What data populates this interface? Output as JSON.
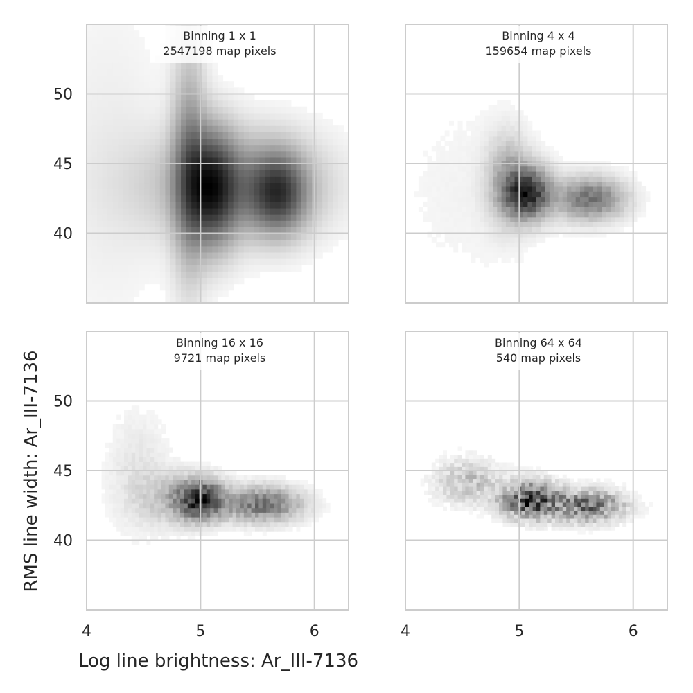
{
  "chart_data": {
    "type": "heatmap",
    "xlabel": "Log line brightness: Ar_III-7136",
    "ylabel": "RMS line width: Ar_III-7136",
    "xlim": [
      4.0,
      6.3
    ],
    "ylim": [
      35.0,
      55.0
    ],
    "xticks": [
      4,
      5,
      6
    ],
    "yticks": [
      40,
      45,
      50
    ],
    "grid": true,
    "colormap": "greys",
    "colors": {
      "grid": "#cccccc",
      "frame": "#cccccc",
      "ink": "#000000",
      "text": "#262626"
    },
    "panels": [
      {
        "title_line1": "Binning 1 x 1",
        "title_line2": "2547198 map pixels",
        "map_pixels": 2547198,
        "show_yticklabels": true,
        "show_xticklabels": false,
        "density": {
          "clusters": [
            {
              "x": 5.1,
              "y": 43.2,
              "sx": 0.15,
              "sy": 2.8,
              "w": 1.0
            },
            {
              "x": 5.68,
              "y": 42.9,
              "sx": 0.17,
              "sy": 1.9,
              "w": 0.9
            },
            {
              "x": 4.9,
              "y": 45.0,
              "sx": 0.1,
              "sy": 5.5,
              "w": 0.5
            },
            {
              "x": 5.3,
              "y": 43.5,
              "sx": 0.5,
              "sy": 2.5,
              "w": 0.5
            },
            {
              "x": 4.2,
              "y": 45.0,
              "sx": 0.35,
              "sy": 8.0,
              "w": 0.06
            }
          ],
          "bins_x": 50,
          "bins_y": 44,
          "noise": 0.0
        }
      },
      {
        "title_line1": "Binning 4 x 4",
        "title_line2": "159654 map pixels",
        "map_pixels": 159654,
        "show_yticklabels": false,
        "show_xticklabels": false,
        "density": {
          "clusters": [
            {
              "x": 5.08,
              "y": 42.9,
              "sx": 0.13,
              "sy": 1.2,
              "w": 1.0
            },
            {
              "x": 5.62,
              "y": 42.5,
              "sx": 0.2,
              "sy": 1.0,
              "w": 0.6
            },
            {
              "x": 4.9,
              "y": 43.8,
              "sx": 0.12,
              "sy": 2.0,
              "w": 0.35
            },
            {
              "x": 4.6,
              "y": 43.0,
              "sx": 0.5,
              "sy": 5.0,
              "w": 0.03
            }
          ],
          "bins_x": 60,
          "bins_y": 55,
          "noise": 0.15
        }
      },
      {
        "title_line1": "Binning 16 x 16",
        "title_line2": "9721 map pixels",
        "map_pixels": 9721,
        "show_yticklabels": true,
        "show_xticklabels": true,
        "density": {
          "clusters": [
            {
              "x": 5.0,
              "y": 42.9,
              "sx": 0.14,
              "sy": 0.9,
              "w": 1.0
            },
            {
              "x": 5.55,
              "y": 42.6,
              "sx": 0.22,
              "sy": 0.8,
              "w": 0.6
            },
            {
              "x": 4.45,
              "y": 44.8,
              "sx": 0.18,
              "sy": 2.8,
              "w": 0.08
            },
            {
              "x": 4.75,
              "y": 43.0,
              "sx": 0.2,
              "sy": 1.2,
              "w": 0.2
            }
          ],
          "bins_x": 70,
          "bins_y": 60,
          "noise": 0.3
        }
      },
      {
        "title_line1": "Binning 64 x 64",
        "title_line2": "540 map pixels",
        "map_pixels": 540,
        "show_yticklabels": false,
        "show_xticklabels": true,
        "density": {
          "clusters": [
            {
              "x": 5.1,
              "y": 42.9,
              "sx": 0.16,
              "sy": 0.8,
              "w": 1.0
            },
            {
              "x": 5.6,
              "y": 42.5,
              "sx": 0.2,
              "sy": 0.7,
              "w": 0.7
            },
            {
              "x": 4.55,
              "y": 44.2,
              "sx": 0.18,
              "sy": 1.0,
              "w": 0.25
            }
          ],
          "bins_x": 70,
          "bins_y": 70,
          "noise": 0.6
        }
      }
    ]
  }
}
